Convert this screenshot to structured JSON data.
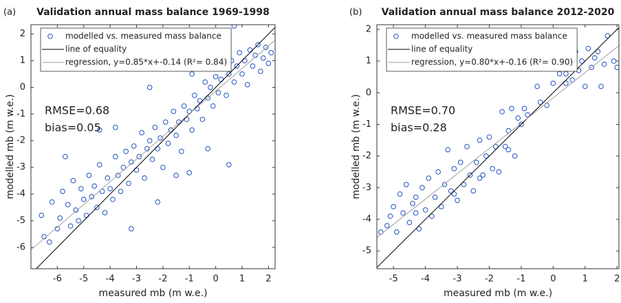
{
  "chart_data": [
    {
      "type": "scatter",
      "panel_label": "(a)",
      "title": "Validation annual mass balance 1969-1998",
      "xlabel": "measured mb (m w.e.)",
      "ylabel": "modelled mb (m w.e.)",
      "xlim": [
        -7,
        2.25
      ],
      "ylim": [
        -6.8,
        2.35
      ],
      "xticks": [
        -6,
        -5,
        -4,
        -3,
        -2,
        -1,
        0,
        1,
        2
      ],
      "yticks": [
        -6,
        -5,
        -4,
        -3,
        -2,
        -1,
        0,
        1,
        2
      ],
      "legend": "upper left",
      "series": [
        {
          "name": "modelled vs. measured mass balance",
          "color": "#1f4fc4",
          "x": [
            -6.6,
            -6.5,
            -6.3,
            -6.2,
            -6.0,
            -5.9,
            -5.8,
            -5.6,
            -5.5,
            -5.4,
            -5.3,
            -5.2,
            -5.1,
            -5.0,
            -4.9,
            -4.8,
            -4.7,
            -4.6,
            -4.5,
            -4.4,
            -4.3,
            -4.2,
            -4.1,
            -4.0,
            -3.9,
            -3.8,
            -3.7,
            -3.6,
            -3.5,
            -3.4,
            -3.3,
            -3.2,
            -3.1,
            -3.0,
            -2.9,
            -2.8,
            -2.7,
            -2.6,
            -2.5,
            -2.4,
            -2.3,
            -2.2,
            -2.1,
            -2.0,
            -1.9,
            -1.8,
            -1.7,
            -1.6,
            -1.5,
            -1.4,
            -1.3,
            -1.2,
            -1.1,
            -1.0,
            -0.9,
            -0.8,
            -0.7,
            -0.6,
            -0.5,
            -0.4,
            -0.3,
            -0.2,
            -0.1,
            0.0,
            0.1,
            0.2,
            0.3,
            0.4,
            0.5,
            0.6,
            0.7,
            0.8,
            0.9,
            1.0,
            1.1,
            1.2,
            1.3,
            1.4,
            1.5,
            1.6,
            1.7,
            1.8,
            1.9,
            2.0,
            2.1,
            -3.8,
            -2.2,
            -1.5,
            -0.9,
            0.5,
            -2.5,
            0.7,
            -4.4,
            -3.2,
            -1.0,
            -0.3,
            -5.7
          ],
          "y": [
            -4.8,
            -5.6,
            -5.8,
            -4.3,
            -5.3,
            -4.9,
            -3.9,
            -4.4,
            -5.2,
            -3.5,
            -4.6,
            -5.0,
            -3.8,
            -4.2,
            -4.8,
            -3.3,
            -4.1,
            -3.7,
            -4.5,
            -2.9,
            -3.9,
            -4.7,
            -3.4,
            -3.8,
            -4.2,
            -2.6,
            -3.3,
            -3.9,
            -3.0,
            -2.4,
            -3.6,
            -2.8,
            -2.2,
            -3.1,
            -2.6,
            -1.7,
            -3.4,
            -2.3,
            -2.0,
            -2.7,
            -1.5,
            -2.3,
            -1.9,
            -3.0,
            -1.3,
            -2.1,
            -1.6,
            -0.9,
            -1.8,
            -1.3,
            -2.4,
            -0.7,
            -1.2,
            -0.9,
            -1.6,
            -0.3,
            -0.8,
            -0.5,
            -1.2,
            0.2,
            -0.4,
            0.0,
            -0.7,
            0.4,
            -0.2,
            0.3,
            0.7,
            -0.3,
            0.5,
            1.0,
            0.2,
            0.8,
            1.3,
            0.5,
            1.0,
            0.1,
            1.4,
            0.8,
            1.2,
            1.6,
            0.6,
            1.1,
            1.5,
            0.9,
            1.3,
            -1.5,
            -4.3,
            -3.3,
            0.5,
            -2.9,
            0.0,
            2.3,
            -1.6,
            -5.3,
            -3.2,
            -2.3,
            -2.6
          ]
        }
      ],
      "lines": [
        {
          "name": "line of equality",
          "color": "#000000",
          "x": [
            -6.8,
            2.25
          ],
          "y": [
            -6.8,
            2.25
          ]
        },
        {
          "name": "regression, y=0.85*x+-0.14 (R²= 0.84)",
          "color": "#a0a0a0",
          "x": [
            -7,
            2.25
          ],
          "y": [
            -6.09,
            1.77
          ]
        }
      ],
      "annotations": [
        "RMSE=0.68",
        "bias=0.05"
      ]
    },
    {
      "type": "scatter",
      "panel_label": "(b)",
      "title": "Validation annual mass balance 2012-2020",
      "xlabel": "measured mb (m w.e.)",
      "ylabel": "modelled mb (m w.e.)",
      "xlim": [
        -5.52,
        2.06
      ],
      "ylim": [
        -5.56,
        2.15
      ],
      "xticks": [
        -5,
        -4,
        -3,
        -2,
        -1,
        0,
        1,
        2
      ],
      "yticks": [
        -5,
        -4,
        -3,
        -2,
        -1,
        0,
        1,
        2
      ],
      "legend": "upper left",
      "series": [
        {
          "name": "modelled vs. measured mass balance",
          "color": "#1f4fc4",
          "x": [
            -5.4,
            -5.2,
            -5.1,
            -5.0,
            -4.9,
            -4.8,
            -4.7,
            -4.6,
            -4.5,
            -4.4,
            -4.3,
            -4.2,
            -4.1,
            -4.0,
            -3.9,
            -3.8,
            -3.7,
            -3.6,
            -3.5,
            -3.4,
            -3.3,
            -3.2,
            -3.1,
            -3.0,
            -2.9,
            -2.8,
            -2.7,
            -2.6,
            -2.5,
            -2.4,
            -2.3,
            -2.2,
            -2.1,
            -2.0,
            -1.9,
            -1.8,
            -1.7,
            -1.6,
            -1.5,
            -1.4,
            -1.3,
            -1.2,
            -1.1,
            -1.0,
            -0.9,
            -0.8,
            -0.5,
            -0.4,
            -0.2,
            0.0,
            0.2,
            0.3,
            0.4,
            0.5,
            0.6,
            0.7,
            0.8,
            0.9,
            1.0,
            1.1,
            1.2,
            1.3,
            1.4,
            1.6,
            1.7,
            1.9,
            2.0,
            -4.3,
            -3.1,
            -2.3,
            -1.4,
            0.4,
            1.5
          ],
          "y": [
            -4.4,
            -4.2,
            -3.9,
            -3.6,
            -4.4,
            -3.2,
            -3.8,
            -2.9,
            -4.1,
            -3.5,
            -3.3,
            -4.3,
            -3.0,
            -3.7,
            -2.7,
            -3.9,
            -3.3,
            -2.5,
            -3.6,
            -2.9,
            -1.8,
            -3.1,
            -2.4,
            -3.4,
            -2.2,
            -2.9,
            -1.7,
            -2.6,
            -3.1,
            -2.2,
            -1.5,
            -2.6,
            -2.0,
            -1.4,
            -2.4,
            -1.7,
            -2.5,
            -0.6,
            -1.7,
            -1.2,
            -0.5,
            -2.0,
            -0.8,
            -1.0,
            -0.5,
            -0.7,
            0.2,
            -0.3,
            -0.4,
            0.3,
            0.6,
            1.1,
            0.3,
            0.9,
            0.4,
            1.3,
            0.7,
            1.0,
            0.2,
            1.4,
            0.8,
            1.1,
            1.3,
            0.9,
            1.8,
            1.0,
            0.8,
            -3.8,
            -3.2,
            -2.7,
            -1.8,
            0.6,
            0.2
          ]
        }
      ],
      "lines": [
        {
          "name": "line of equality",
          "color": "#000000",
          "x": [
            -5.52,
            2.06
          ],
          "y": [
            -5.52,
            2.06
          ]
        },
        {
          "name": "regression, y=0.80*x+-0.16 (R²= 0.90)",
          "color": "#a0a0a0",
          "x": [
            -5.52,
            2.06
          ],
          "y": [
            -4.576,
            1.488
          ]
        }
      ],
      "annotations": [
        "RMSE=0.70",
        "bias=0.28"
      ]
    }
  ]
}
